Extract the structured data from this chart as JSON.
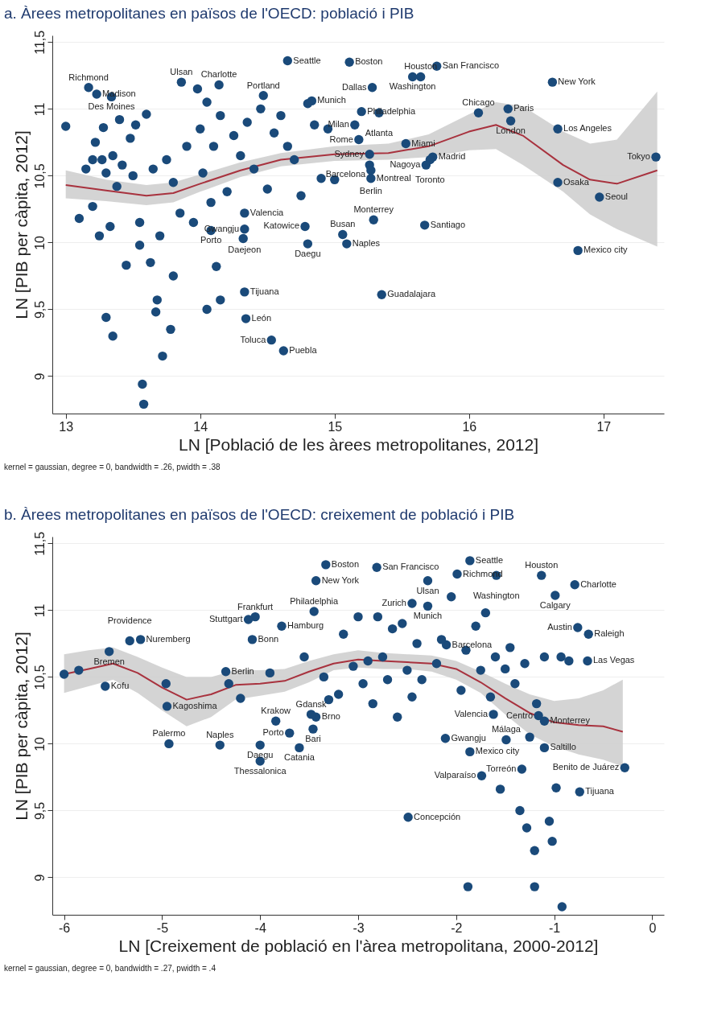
{
  "chart_data": [
    {
      "type": "scatter",
      "title": "a. Àrees metropolitanes en països de l'OECD: població i PIB",
      "xlabel": "LN [Població de les àrees metropolitanes, 2012]",
      "ylabel": "LN [PIB per càpita, 2012]",
      "xlim": [
        12.9,
        17.45
      ],
      "xticks": [
        13,
        14,
        15,
        16,
        17
      ],
      "ylim": [
        8.72,
        11.55
      ],
      "yticks": [
        9,
        {
          "value": 9.5,
          "label": "9,5"
        },
        10,
        {
          "value": 10.5,
          "label": "10,5"
        },
        11,
        {
          "value": 11.5,
          "label": "11,5"
        }
      ],
      "grid": "y",
      "series": [
        {
          "color": "#1a4a7a",
          "marker": "circle",
          "x": [
            14.65,
            14.08,
            15.29,
            15.67,
            13.17,
            13.23,
            13.34,
            13.86,
            14.14,
            14.47,
            14.83,
            15.11,
            15.58,
            15.64,
            15.76,
            16.62,
            15.28,
            14.8,
            15.2,
            15.33,
            16.07,
            16.29,
            16.31,
            16.66,
            17.39,
            15.15,
            15.18,
            15.53,
            15.73,
            15.71,
            15.68,
            15.26,
            15.26,
            15.27,
            15.27,
            16.66,
            16.97,
            14.33,
            14.78,
            14.33,
            14.32,
            15.06,
            14.8,
            15.09,
            16.81,
            14.33,
            15.35,
            14.34,
            14.53,
            14.62,
            13.0,
            13.1,
            13.15,
            13.2,
            13.2,
            13.22,
            13.25,
            13.27,
            13.28,
            13.3,
            13.3,
            13.33,
            13.35,
            13.35,
            13.38,
            13.4,
            13.42,
            13.45,
            13.48,
            13.5,
            13.52,
            13.55,
            13.55,
            13.57,
            13.58,
            13.6,
            13.63,
            13.65,
            13.67,
            13.68,
            13.7,
            13.72,
            13.75,
            13.78,
            13.8,
            13.8,
            13.85,
            13.9,
            13.95,
            13.98,
            14.0,
            14.02,
            14.05,
            14.05,
            14.08,
            14.1,
            14.12,
            14.15,
            14.15,
            14.2,
            14.25,
            14.3,
            14.35,
            14.4,
            14.45,
            14.5,
            14.55,
            14.6,
            14.65,
            14.7,
            14.75,
            14.85,
            14.9,
            14.95,
            15.0
          ],
          "values": [
            11.36,
            10.09,
            10.17,
            10.13,
            11.16,
            11.11,
            11.09,
            11.2,
            11.18,
            11.1,
            11.06,
            11.35,
            11.24,
            11.24,
            11.32,
            11.2,
            11.16,
            11.04,
            10.98,
            10.97,
            10.97,
            11.0,
            10.91,
            10.85,
            10.64,
            10.88,
            10.77,
            10.74,
            10.64,
            10.62,
            10.58,
            10.66,
            10.58,
            10.54,
            10.48,
            10.45,
            10.34,
            10.22,
            10.12,
            10.1,
            10.03,
            10.06,
            9.99,
            9.99,
            9.94,
            9.63,
            9.61,
            9.43,
            9.27,
            9.19,
            10.87,
            10.18,
            10.55,
            10.62,
            10.27,
            10.75,
            10.05,
            10.62,
            10.86,
            10.52,
            9.44,
            10.12,
            10.65,
            9.3,
            10.42,
            10.92,
            10.58,
            9.83,
            10.78,
            10.5,
            10.88,
            10.15,
            9.98,
            8.94,
            8.79,
            10.96,
            9.85,
            10.55,
            9.48,
            9.57,
            10.05,
            9.15,
            10.62,
            9.35,
            10.45,
            9.75,
            10.22,
            10.72,
            10.15,
            11.15,
            10.85,
            10.52,
            11.05,
            9.5,
            10.3,
            10.72,
            9.82,
            10.95,
            9.57,
            10.38,
            10.8,
            10.65,
            10.9,
            10.55,
            11.0,
            10.4,
            10.82,
            10.95,
            10.72,
            10.62,
            10.35,
            10.88,
            10.48,
            10.85,
            10.47
          ]
        },
        {
          "type": "line",
          "color": "#a8323e",
          "x": [
            13.0,
            13.3,
            13.6,
            13.8,
            14.0,
            14.3,
            14.6,
            15.0,
            15.4,
            15.7,
            16.0,
            16.2,
            16.4,
            16.7,
            16.9,
            17.1,
            17.4
          ],
          "values": [
            10.43,
            10.39,
            10.35,
            10.37,
            10.44,
            10.54,
            10.62,
            10.66,
            10.67,
            10.72,
            10.83,
            10.88,
            10.8,
            10.58,
            10.47,
            10.44,
            10.54
          ],
          "lower": [
            10.33,
            10.31,
            10.28,
            10.3,
            10.38,
            10.49,
            10.57,
            10.61,
            10.62,
            10.64,
            10.69,
            10.7,
            10.58,
            10.38,
            10.21,
            10.1,
            9.97
          ],
          "upper": [
            10.54,
            10.47,
            10.43,
            10.45,
            10.51,
            10.6,
            10.67,
            10.72,
            10.74,
            10.81,
            10.96,
            11.05,
            11.02,
            10.83,
            10.74,
            10.77,
            11.13
          ]
        }
      ],
      "annotations": [
        {
          "text": "Richmond",
          "x": 13.17,
          "y": 11.16
        },
        {
          "text": "Madison",
          "x": 13.23,
          "y": 11.11
        },
        {
          "text": "Des Moines",
          "x": 13.34,
          "y": 11.09
        },
        {
          "text": "Ulsan",
          "x": 13.86,
          "y": 11.2
        },
        {
          "text": "Charlotte",
          "x": 14.14,
          "y": 11.18
        },
        {
          "text": "Portland",
          "x": 14.47,
          "y": 11.1
        },
        {
          "text": "Munich",
          "x": 14.83,
          "y": 11.06
        },
        {
          "text": "Seattle",
          "x": 14.65,
          "y": 11.36
        },
        {
          "text": "Boston",
          "x": 15.11,
          "y": 11.35
        },
        {
          "text": "Washington",
          "x": 15.58,
          "y": 11.24
        },
        {
          "text": "Houston",
          "x": 15.64,
          "y": 11.24
        },
        {
          "text": "San Francisco",
          "x": 15.76,
          "y": 11.32
        },
        {
          "text": "New York",
          "x": 16.62,
          "y": 11.2
        },
        {
          "text": "Dallas",
          "x": 15.28,
          "y": 11.16
        },
        {
          "text": "Philadelphia",
          "x": 15.2,
          "y": 10.98
        },
        {
          "text": "Atlanta",
          "x": 15.33,
          "y": 10.97
        },
        {
          "text": "Chicago",
          "x": 16.07,
          "y": 10.97
        },
        {
          "text": "Paris",
          "x": 16.29,
          "y": 11.0
        },
        {
          "text": "London",
          "x": 16.31,
          "y": 10.91
        },
        {
          "text": "Los Angeles",
          "x": 16.66,
          "y": 10.85
        },
        {
          "text": "Tokyo",
          "x": 17.39,
          "y": 10.64
        },
        {
          "text": "Milan",
          "x": 15.15,
          "y": 10.88
        },
        {
          "text": "Rome",
          "x": 15.18,
          "y": 10.77
        },
        {
          "text": "Miami",
          "x": 15.53,
          "y": 10.74
        },
        {
          "text": "Madrid",
          "x": 15.73,
          "y": 10.64
        },
        {
          "text": "Toronto",
          "x": 15.71,
          "y": 10.62
        },
        {
          "text": "Nagoya",
          "x": 15.68,
          "y": 10.58
        },
        {
          "text": "Sydney",
          "x": 15.26,
          "y": 10.66
        },
        {
          "text": "Barcelona",
          "x": 15.26,
          "y": 10.58
        },
        {
          "text": "Berlin",
          "x": 15.27,
          "y": 10.54
        },
        {
          "text": "Montreal",
          "x": 15.27,
          "y": 10.48
        },
        {
          "text": "Osaka",
          "x": 16.66,
          "y": 10.45
        },
        {
          "text": "Seoul",
          "x": 16.97,
          "y": 10.34
        },
        {
          "text": "Valencia",
          "x": 14.33,
          "y": 10.22
        },
        {
          "text": "Katowice",
          "x": 14.78,
          "y": 10.12
        },
        {
          "text": "Daejeon",
          "x": 14.33,
          "y": 10.1
        },
        {
          "text": "Porto",
          "x": 14.08,
          "y": 10.09
        },
        {
          "text": "Gwangju",
          "x": 14.32,
          "y": 10.03
        },
        {
          "text": "Busan",
          "x": 15.06,
          "y": 10.06
        },
        {
          "text": "Daegu",
          "x": 14.8,
          "y": 9.99
        },
        {
          "text": "Naples",
          "x": 15.09,
          "y": 9.99
        },
        {
          "text": "Monterrey",
          "x": 15.29,
          "y": 10.17
        },
        {
          "text": "Santiago",
          "x": 15.67,
          "y": 10.13
        },
        {
          "text": "Mexico city",
          "x": 16.81,
          "y": 9.94
        },
        {
          "text": "Tijuana",
          "x": 14.33,
          "y": 9.63
        },
        {
          "text": "Guadalajara",
          "x": 15.35,
          "y": 9.61
        },
        {
          "text": "León",
          "x": 14.34,
          "y": 9.43
        },
        {
          "text": "Toluca",
          "x": 14.53,
          "y": 9.27
        },
        {
          "text": "Puebla",
          "x": 14.62,
          "y": 9.19
        },
        "kernel = gaussian, degree = 0, bandwidth = .26, pwidth = .38"
      ]
    },
    {
      "type": "scatter",
      "title": "b. Àrees metropolitanes en països de l'OECD: creixement de població i PIB",
      "xlabel": "LN [Creixement de població en l'àrea metropolitana, 2000-2012]",
      "ylabel": "LN [PIB per càpita, 2012]",
      "xlim": [
        -6.12,
        0.12
      ],
      "xticks": [
        -6,
        -5,
        -4,
        -3,
        -2,
        -1,
        0
      ],
      "ylim": [
        8.72,
        11.55
      ],
      "yticks": [
        9,
        {
          "value": 9.5,
          "label": "9,5"
        },
        10,
        {
          "value": 10.5,
          "label": "10,5"
        },
        11,
        {
          "value": 11.5,
          "label": "11,5"
        }
      ],
      "grid": "y",
      "series": [
        {
          "color": "#1a4a7a",
          "marker": "circle",
          "x": [
            -3.33,
            -2.81,
            -1.86,
            -3.43,
            -2.29,
            -1.99,
            -1.59,
            -1.13,
            -0.79,
            -0.99,
            -4.05,
            -4.12,
            -3.45,
            -2.45,
            -2.29,
            -0.76,
            -0.65,
            -5.33,
            -5.22,
            -5.54,
            -3.78,
            -4.08,
            -4.35,
            -2.1,
            -0.66,
            -5.58,
            -4.95,
            -3.84,
            -3.43,
            -3.46,
            -3.7,
            -3.48,
            -4.41,
            -4.0,
            -3.6,
            -4.93,
            -4.0,
            -1.16,
            -1.1,
            -1.62,
            -1.49,
            -1.1,
            -0.28,
            -2.11,
            -1.86,
            -1.33,
            -1.74,
            -0.74,
            -2.49,
            -6.0,
            -5.85,
            -4.96,
            -4.32,
            -4.2,
            -3.9,
            -3.55,
            -3.35,
            -3.3,
            -3.2,
            -3.15,
            -3.05,
            -3.0,
            -2.95,
            -2.9,
            -2.85,
            -2.8,
            -2.75,
            -2.7,
            -2.65,
            -2.6,
            -2.55,
            -2.5,
            -2.45,
            -2.4,
            -2.35,
            -2.2,
            -2.15,
            -2.05,
            -1.95,
            -1.9,
            -1.8,
            -1.75,
            -1.7,
            -1.65,
            -1.6,
            -1.55,
            -1.5,
            -1.45,
            -1.4,
            -1.35,
            -1.3,
            -1.28,
            -1.25,
            -1.2,
            -1.2,
            -1.18,
            -1.1,
            -1.05,
            -0.98,
            -0.93,
            -0.92,
            -0.85,
            -1.88,
            -1.02
          ],
          "values": [
            11.34,
            11.32,
            11.37,
            11.22,
            11.22,
            11.27,
            11.26,
            11.26,
            11.19,
            11.11,
            10.95,
            10.93,
            10.99,
            11.05,
            11.03,
            10.87,
            10.82,
            10.77,
            10.78,
            10.69,
            10.88,
            10.78,
            10.54,
            10.74,
            10.62,
            10.43,
            10.28,
            10.17,
            10.2,
            10.11,
            10.08,
            10.22,
            9.99,
            9.99,
            9.97,
            10.0,
            9.87,
            10.21,
            10.17,
            10.22,
            10.03,
            9.97,
            9.82,
            10.04,
            9.94,
            9.81,
            9.76,
            9.64,
            9.45,
            10.52,
            10.55,
            10.45,
            10.45,
            10.34,
            10.53,
            10.65,
            10.5,
            10.33,
            10.37,
            10.82,
            10.58,
            10.95,
            10.45,
            10.62,
            10.3,
            10.95,
            10.65,
            10.48,
            10.86,
            10.2,
            10.9,
            10.55,
            10.35,
            10.75,
            10.48,
            10.6,
            10.78,
            11.1,
            10.4,
            10.7,
            10.88,
            10.55,
            10.98,
            10.35,
            10.65,
            9.66,
            10.56,
            10.72,
            10.45,
            9.5,
            10.6,
            9.37,
            10.05,
            9.2,
            8.93,
            10.3,
            10.65,
            9.42,
            9.67,
            10.65,
            8.78,
            10.62,
            8.93,
            9.27
          ]
        },
        {
          "type": "line",
          "color": "#a8323e",
          "x": [
            -6.0,
            -5.75,
            -5.5,
            -5.25,
            -5.0,
            -4.75,
            -4.5,
            -4.25,
            -4.0,
            -3.75,
            -3.5,
            -3.25,
            -3.0,
            -2.75,
            -2.5,
            -2.25,
            -2.0,
            -1.75,
            -1.5,
            -1.25,
            -1.0,
            -0.75,
            -0.5,
            -0.3
          ],
          "values": [
            10.52,
            10.56,
            10.6,
            10.53,
            10.42,
            10.33,
            10.37,
            10.44,
            10.45,
            10.47,
            10.54,
            10.6,
            10.63,
            10.62,
            10.61,
            10.6,
            10.56,
            10.46,
            10.34,
            10.23,
            10.16,
            10.14,
            10.13,
            10.09
          ],
          "lower": [
            10.38,
            10.43,
            10.48,
            10.38,
            10.25,
            10.13,
            10.2,
            10.33,
            10.36,
            10.39,
            10.46,
            10.55,
            10.57,
            10.56,
            10.56,
            10.54,
            10.48,
            10.38,
            10.22,
            10.07,
            9.98,
            9.92,
            9.88,
            9.83
          ],
          "upper": [
            10.67,
            10.7,
            10.72,
            10.65,
            10.57,
            10.5,
            10.5,
            10.55,
            10.55,
            10.56,
            10.62,
            10.67,
            10.7,
            10.68,
            10.67,
            10.66,
            10.62,
            10.54,
            10.45,
            10.37,
            10.32,
            10.34,
            10.4,
            10.48
          ]
        }
      ],
      "annotations": [
        {
          "text": "Boston",
          "x": -3.33,
          "y": 11.34
        },
        {
          "text": "San Francisco",
          "x": -2.81,
          "y": 11.32
        },
        {
          "text": "Seattle",
          "x": -1.86,
          "y": 11.37
        },
        {
          "text": "New York",
          "x": -3.43,
          "y": 11.22
        },
        {
          "text": "Ulsan",
          "x": -2.29,
          "y": 11.22
        },
        {
          "text": "Richmond",
          "x": -1.99,
          "y": 11.27
        },
        {
          "text": "Washington",
          "x": -1.59,
          "y": 11.26
        },
        {
          "text": "Houston",
          "x": -1.13,
          "y": 11.26
        },
        {
          "text": "Charlotte",
          "x": -0.79,
          "y": 11.19
        },
        {
          "text": "Calgary",
          "x": -0.99,
          "y": 11.11
        },
        {
          "text": "Frankfurt",
          "x": -4.05,
          "y": 10.95
        },
        {
          "text": "Stuttgart",
          "x": -4.12,
          "y": 10.93
        },
        {
          "text": "Philadelphia",
          "x": -3.45,
          "y": 10.99
        },
        {
          "text": "Zurich",
          "x": -2.45,
          "y": 11.05
        },
        {
          "text": "Munich",
          "x": -2.29,
          "y": 11.03
        },
        {
          "text": "Austin",
          "x": -0.76,
          "y": 10.87
        },
        {
          "text": "Raleigh",
          "x": -0.65,
          "y": 10.82
        },
        {
          "text": "Providence",
          "x": -5.33,
          "y": 10.77
        },
        {
          "text": "Nuremberg",
          "x": -5.22,
          "y": 10.78
        },
        {
          "text": "Bremen",
          "x": -5.54,
          "y": 10.69
        },
        {
          "text": "Hamburg",
          "x": -3.78,
          "y": 10.88
        },
        {
          "text": "Bonn",
          "x": -4.08,
          "y": 10.78
        },
        {
          "text": "Berlin",
          "x": -4.35,
          "y": 10.54
        },
        {
          "text": "Barcelona",
          "x": -2.1,
          "y": 10.74
        },
        {
          "text": "Las Vegas",
          "x": -0.66,
          "y": 10.62
        },
        {
          "text": "Kofu",
          "x": -5.58,
          "y": 10.43
        },
        {
          "text": "Kagoshima",
          "x": -4.95,
          "y": 10.28
        },
        {
          "text": "Krakow",
          "x": -3.84,
          "y": 10.17
        },
        {
          "text": "Brno",
          "x": -3.43,
          "y": 10.2
        },
        {
          "text": "Bari",
          "x": -3.46,
          "y": 10.11
        },
        {
          "text": "Porto",
          "x": -3.7,
          "y": 10.08
        },
        {
          "text": "Gdansk",
          "x": -3.48,
          "y": 10.22
        },
        {
          "text": "Naples",
          "x": -4.41,
          "y": 9.99
        },
        {
          "text": "Daegu",
          "x": -4.0,
          "y": 9.99
        },
        {
          "text": "Catania",
          "x": -3.6,
          "y": 9.97
        },
        {
          "text": "Palermo",
          "x": -4.93,
          "y": 10.0
        },
        {
          "text": "Thessalonica",
          "x": -4.0,
          "y": 9.87
        },
        {
          "text": "Centro",
          "x": -1.16,
          "y": 10.21
        },
        {
          "text": "Monterrey",
          "x": -1.1,
          "y": 10.17
        },
        {
          "text": "Valencia",
          "x": -1.62,
          "y": 10.22
        },
        {
          "text": "Málaga",
          "x": -1.49,
          "y": 10.03
        },
        {
          "text": "Saltillo",
          "x": -1.1,
          "y": 9.97
        },
        {
          "text": "Benito de Juárez",
          "x": -0.28,
          "y": 9.82
        },
        {
          "text": "Gwangju",
          "x": -2.11,
          "y": 10.04
        },
        {
          "text": "Mexico city",
          "x": -1.86,
          "y": 9.94
        },
        {
          "text": "Torreón",
          "x": -1.33,
          "y": 9.81
        },
        {
          "text": "Valparaíso",
          "x": -1.74,
          "y": 9.76
        },
        {
          "text": "Tijuana",
          "x": -0.74,
          "y": 9.64
        },
        {
          "text": "Concepción",
          "x": -2.49,
          "y": 9.45
        },
        "kernel = gaussian, degree = 0, bandwidth = .27, pwidth = .4"
      ]
    }
  ]
}
